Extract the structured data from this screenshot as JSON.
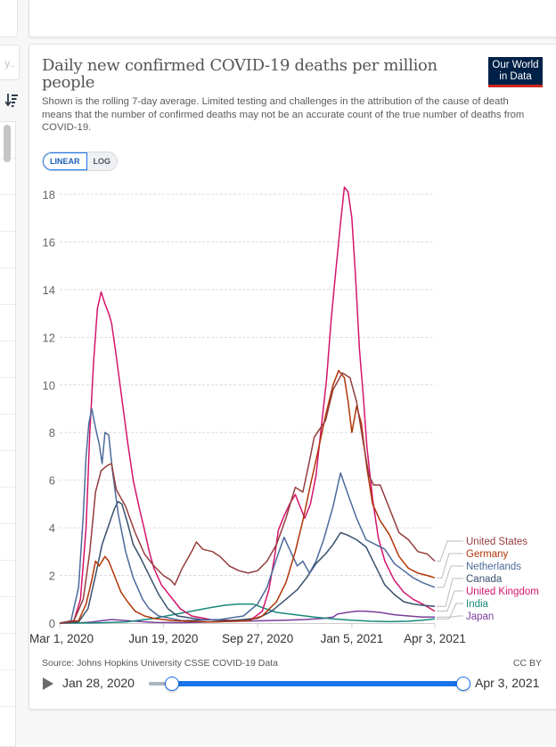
{
  "sidebar": {
    "search_placeholder": "y..",
    "sort_icon": "sort-descending-icon"
  },
  "header": {
    "title": "Daily new confirmed COVID-19 deaths per million people",
    "subtitle": "Shown is the rolling 7-day average. Limited testing and challenges in the attribution of the cause of death means that the number of confirmed deaths may not be an accurate count of the true number of deaths from COVID-19.",
    "logo_line1": "Our World",
    "logo_line2": "in Data"
  },
  "scale_toggle": {
    "options": [
      "LINEAR",
      "LOG"
    ],
    "selected": "LINEAR"
  },
  "footer": {
    "source": "Source: Johns Hopkins University CSSE COVID-19 Data",
    "license": "CC BY"
  },
  "timeline": {
    "start_date": "Jan 28, 2020",
    "end_date": "Apr 3, 2021",
    "range_start_fraction": 0.07,
    "range_end_fraction": 1.0
  },
  "chart_data": {
    "type": "line",
    "title": "Daily new confirmed COVID-19 deaths per million people",
    "xlabel": "",
    "ylabel": "",
    "x_range": [
      "2020-03-01",
      "2021-04-03"
    ],
    "ylim": [
      0,
      18
    ],
    "yticks": [
      0,
      2,
      4,
      6,
      8,
      10,
      12,
      14,
      16,
      18
    ],
    "xtick_labels": [
      {
        "date": "2020-03-01",
        "label": "Mar 1, 2020"
      },
      {
        "date": "2020-06-19",
        "label": "Jun 19, 2020"
      },
      {
        "date": "2020-09-27",
        "label": "Sep 27, 2020"
      },
      {
        "date": "2021-01-05",
        "label": "Jan 5, 2021"
      },
      {
        "date": "2021-04-03",
        "label": "Apr 3, 2021"
      }
    ],
    "grid": "horizontal-dashed",
    "legend": "right",
    "series": [
      {
        "name": "United States",
        "color": "#943c3c",
        "label_y_value": 2.8,
        "points": [
          [
            0,
            0
          ],
          [
            15,
            0.1
          ],
          [
            25,
            1.0
          ],
          [
            32,
            3.0
          ],
          [
            38,
            5.5
          ],
          [
            44,
            6.4
          ],
          [
            50,
            6.6
          ],
          [
            55,
            6.7
          ],
          [
            60,
            5.6
          ],
          [
            70,
            4.9
          ],
          [
            80,
            3.8
          ],
          [
            90,
            2.9
          ],
          [
            100,
            2.4
          ],
          [
            110,
            2.0
          ],
          [
            118,
            1.8
          ],
          [
            122,
            1.6
          ],
          [
            130,
            2.3
          ],
          [
            140,
            3.0
          ],
          [
            145,
            3.4
          ],
          [
            152,
            3.1
          ],
          [
            162,
            3.0
          ],
          [
            170,
            2.8
          ],
          [
            180,
            2.4
          ],
          [
            190,
            2.2
          ],
          [
            200,
            2.1
          ],
          [
            210,
            2.2
          ],
          [
            220,
            2.6
          ],
          [
            230,
            3.3
          ],
          [
            240,
            4.4
          ],
          [
            250,
            5.7
          ],
          [
            258,
            5.5
          ],
          [
            265,
            6.8
          ],
          [
            270,
            7.8
          ],
          [
            275,
            8.1
          ],
          [
            282,
            8.5
          ],
          [
            290,
            9.8
          ],
          [
            300,
            10.5
          ],
          [
            308,
            10.3
          ],
          [
            315,
            9.3
          ],
          [
            322,
            7.6
          ],
          [
            328,
            6.2
          ],
          [
            333,
            5.8
          ],
          [
            340,
            5.8
          ],
          [
            350,
            4.8
          ],
          [
            360,
            3.8
          ],
          [
            370,
            3.5
          ],
          [
            380,
            3.0
          ],
          [
            390,
            2.9
          ],
          [
            398,
            2.6
          ]
        ]
      },
      {
        "name": "Germany",
        "color": "#b13507",
        "label_y_value": 2.3,
        "points": [
          [
            0,
            0
          ],
          [
            20,
            0.1
          ],
          [
            28,
            0.8
          ],
          [
            34,
            1.8
          ],
          [
            38,
            2.6
          ],
          [
            42,
            2.4
          ],
          [
            48,
            2.8
          ],
          [
            52,
            2.6
          ],
          [
            58,
            2.0
          ],
          [
            65,
            1.3
          ],
          [
            72,
            0.9
          ],
          [
            80,
            0.5
          ],
          [
            90,
            0.3
          ],
          [
            100,
            0.2
          ],
          [
            120,
            0.1
          ],
          [
            160,
            0.05
          ],
          [
            200,
            0.1
          ],
          [
            215,
            0.3
          ],
          [
            230,
            0.9
          ],
          [
            240,
            1.7
          ],
          [
            250,
            3.0
          ],
          [
            258,
            4.3
          ],
          [
            266,
            5.8
          ],
          [
            274,
            7.2
          ],
          [
            282,
            8.7
          ],
          [
            290,
            10.0
          ],
          [
            296,
            10.6
          ],
          [
            302,
            10.3
          ],
          [
            306,
            9.3
          ],
          [
            310,
            8.0
          ],
          [
            315,
            9.1
          ],
          [
            320,
            8.4
          ],
          [
            326,
            6.5
          ],
          [
            332,
            5.0
          ],
          [
            340,
            4.3
          ],
          [
            350,
            3.7
          ],
          [
            360,
            2.8
          ],
          [
            370,
            2.3
          ],
          [
            380,
            2.1
          ],
          [
            390,
            2.0
          ],
          [
            398,
            1.9
          ]
        ]
      },
      {
        "name": "Netherlands",
        "color": "#4c6a9c",
        "label_y_value": 1.8,
        "points": [
          [
            0,
            0
          ],
          [
            12,
            0.1
          ],
          [
            20,
            1.5
          ],
          [
            25,
            4.5
          ],
          [
            28,
            7.0
          ],
          [
            31,
            8.4
          ],
          [
            34,
            9.0
          ],
          [
            38,
            8.2
          ],
          [
            42,
            7.5
          ],
          [
            45,
            6.7
          ],
          [
            48,
            8.0
          ],
          [
            52,
            7.9
          ],
          [
            56,
            6.4
          ],
          [
            62,
            4.6
          ],
          [
            70,
            3.0
          ],
          [
            78,
            1.9
          ],
          [
            88,
            1.0
          ],
          [
            95,
            0.6
          ],
          [
            105,
            0.3
          ],
          [
            130,
            0.1
          ],
          [
            170,
            0.15
          ],
          [
            195,
            0.3
          ],
          [
            210,
            0.8
          ],
          [
            220,
            1.5
          ],
          [
            230,
            2.7
          ],
          [
            238,
            3.6
          ],
          [
            245,
            3.0
          ],
          [
            252,
            2.4
          ],
          [
            258,
            2.6
          ],
          [
            265,
            2.1
          ],
          [
            272,
            2.6
          ],
          [
            280,
            3.5
          ],
          [
            290,
            4.9
          ],
          [
            298,
            6.3
          ],
          [
            305,
            5.5
          ],
          [
            315,
            4.4
          ],
          [
            325,
            3.5
          ],
          [
            335,
            3.3
          ],
          [
            345,
            3.1
          ],
          [
            355,
            2.5
          ],
          [
            365,
            2.2
          ],
          [
            375,
            1.9
          ],
          [
            385,
            1.7
          ],
          [
            398,
            1.5
          ]
        ]
      },
      {
        "name": "Canada",
        "color": "#38506b",
        "label_y_value": 1.3,
        "points": [
          [
            0,
            0
          ],
          [
            20,
            0.05
          ],
          [
            30,
            0.6
          ],
          [
            38,
            2.0
          ],
          [
            45,
            3.3
          ],
          [
            52,
            4.1
          ],
          [
            58,
            4.8
          ],
          [
            62,
            5.1
          ],
          [
            66,
            5.0
          ],
          [
            72,
            4.2
          ],
          [
            78,
            3.3
          ],
          [
            85,
            2.8
          ],
          [
            95,
            2.0
          ],
          [
            105,
            1.2
          ],
          [
            115,
            0.6
          ],
          [
            125,
            0.3
          ],
          [
            150,
            0.15
          ],
          [
            180,
            0.1
          ],
          [
            210,
            0.2
          ],
          [
            225,
            0.5
          ],
          [
            240,
            1.0
          ],
          [
            252,
            1.4
          ],
          [
            262,
            1.9
          ],
          [
            272,
            2.5
          ],
          [
            282,
            2.9
          ],
          [
            290,
            3.3
          ],
          [
            298,
            3.8
          ],
          [
            305,
            3.7
          ],
          [
            315,
            3.5
          ],
          [
            325,
            3.2
          ],
          [
            335,
            2.4
          ],
          [
            345,
            1.6
          ],
          [
            355,
            1.2
          ],
          [
            365,
            0.9
          ],
          [
            375,
            0.8
          ],
          [
            385,
            0.75
          ],
          [
            398,
            0.7
          ]
        ]
      },
      {
        "name": "United Kingdom",
        "color": "#d4146c",
        "label_y_value": 0.8,
        "points": [
          [
            0,
            0
          ],
          [
            15,
            0.1
          ],
          [
            22,
            1.0
          ],
          [
            28,
            4.0
          ],
          [
            32,
            8.0
          ],
          [
            36,
            11.0
          ],
          [
            40,
            13.2
          ],
          [
            44,
            13.9
          ],
          [
            48,
            13.4
          ],
          [
            52,
            13.0
          ],
          [
            55,
            12.6
          ],
          [
            60,
            11.2
          ],
          [
            65,
            9.7
          ],
          [
            72,
            7.6
          ],
          [
            78,
            6.0
          ],
          [
            84,
            4.9
          ],
          [
            90,
            3.9
          ],
          [
            95,
            3.0
          ],
          [
            100,
            2.3
          ],
          [
            108,
            1.6
          ],
          [
            118,
            1.1
          ],
          [
            128,
            0.6
          ],
          [
            140,
            0.3
          ],
          [
            160,
            0.15
          ],
          [
            190,
            0.1
          ],
          [
            205,
            0.2
          ],
          [
            215,
            0.5
          ],
          [
            222,
            1.4
          ],
          [
            228,
            2.8
          ],
          [
            232,
            3.9
          ],
          [
            238,
            4.5
          ],
          [
            244,
            5.0
          ],
          [
            250,
            5.4
          ],
          [
            255,
            4.9
          ],
          [
            260,
            4.4
          ],
          [
            266,
            5.0
          ],
          [
            272,
            6.2
          ],
          [
            278,
            8.4
          ],
          [
            283,
            10.2
          ],
          [
            288,
            12.7
          ],
          [
            293,
            14.8
          ],
          [
            298,
            16.8
          ],
          [
            302,
            18.3
          ],
          [
            306,
            18.1
          ],
          [
            310,
            17.0
          ],
          [
            314,
            14.5
          ],
          [
            318,
            11.5
          ],
          [
            322,
            9.6
          ],
          [
            326,
            7.4
          ],
          [
            332,
            5.2
          ],
          [
            338,
            3.6
          ],
          [
            345,
            2.6
          ],
          [
            355,
            1.8
          ],
          [
            365,
            1.3
          ],
          [
            375,
            1.0
          ],
          [
            385,
            0.8
          ],
          [
            398,
            0.5
          ]
        ]
      },
      {
        "name": "India",
        "color": "#18897a",
        "label_y_value": 0.35,
        "points": [
          [
            0,
            0
          ],
          [
            40,
            0.01
          ],
          [
            70,
            0.05
          ],
          [
            100,
            0.2
          ],
          [
            120,
            0.35
          ],
          [
            140,
            0.5
          ],
          [
            160,
            0.65
          ],
          [
            175,
            0.75
          ],
          [
            190,
            0.8
          ],
          [
            205,
            0.8
          ],
          [
            215,
            0.65
          ],
          [
            230,
            0.45
          ],
          [
            250,
            0.35
          ],
          [
            270,
            0.25
          ],
          [
            290,
            0.18
          ],
          [
            310,
            0.12
          ],
          [
            330,
            0.08
          ],
          [
            350,
            0.06
          ],
          [
            370,
            0.08
          ],
          [
            385,
            0.12
          ],
          [
            398,
            0.18
          ]
        ]
      },
      {
        "name": "Japan",
        "color": "#7a3d9c",
        "label_y_value": -0.1,
        "points": [
          [
            0,
            0
          ],
          [
            20,
            0.01
          ],
          [
            35,
            0.05
          ],
          [
            45,
            0.1
          ],
          [
            55,
            0.15
          ],
          [
            65,
            0.12
          ],
          [
            80,
            0.08
          ],
          [
            100,
            0.03
          ],
          [
            130,
            0.02
          ],
          [
            160,
            0.05
          ],
          [
            190,
            0.08
          ],
          [
            220,
            0.1
          ],
          [
            240,
            0.12
          ],
          [
            260,
            0.15
          ],
          [
            280,
            0.2
          ],
          [
            290,
            0.25
          ],
          [
            295,
            0.38
          ],
          [
            305,
            0.45
          ],
          [
            315,
            0.5
          ],
          [
            325,
            0.5
          ],
          [
            340,
            0.45
          ],
          [
            355,
            0.35
          ],
          [
            370,
            0.3
          ],
          [
            385,
            0.25
          ],
          [
            398,
            0.25
          ]
        ]
      }
    ]
  }
}
